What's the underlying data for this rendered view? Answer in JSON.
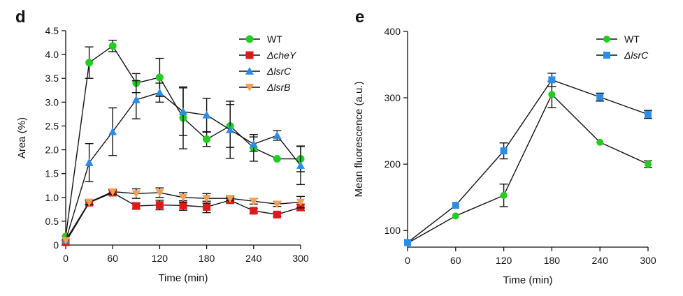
{
  "chart_data": [
    {
      "panel": "d",
      "type": "line",
      "xlabel": "Time (min)",
      "ylabel": "Area (%)",
      "xlim": [
        0,
        300
      ],
      "ylim": [
        0,
        4.5
      ],
      "xticks": [
        0,
        60,
        120,
        180,
        240,
        300
      ],
      "yticks": [
        0,
        0.5,
        1.0,
        1.5,
        2.0,
        2.5,
        3.0,
        3.5,
        4.0,
        4.5
      ],
      "ytick_labels": [
        "0",
        "0.5",
        "1.0",
        "1.5",
        "2.0",
        "2.5",
        "3.0",
        "3.5",
        "4.0",
        "4.5"
      ],
      "legend_position": "top-right",
      "grid": false,
      "x": [
        0,
        30,
        60,
        90,
        120,
        150,
        180,
        210,
        240,
        270,
        300
      ],
      "series": [
        {
          "name": "WT",
          "italic": false,
          "marker": "circle",
          "color": "#22cc22",
          "values": [
            0.18,
            3.83,
            4.18,
            3.4,
            3.52,
            2.67,
            2.22,
            2.5,
            2.04,
            1.81,
            1.81
          ],
          "err": [
            0,
            0.33,
            0.12,
            0.2,
            0.4,
            0.65,
            0.15,
            0.45,
            0.28,
            0,
            0.27
          ]
        },
        {
          "name": "ΔcheY",
          "italic": true,
          "marker": "square",
          "color": "#e01818",
          "values": [
            0.06,
            0.89,
            1.1,
            0.82,
            0.84,
            0.83,
            0.8,
            0.94,
            0.72,
            0.64,
            0.79
          ],
          "err": [
            0,
            0.05,
            0.05,
            0.06,
            0.1,
            0.1,
            0.12,
            0.06,
            0.05,
            0.04,
            0.07
          ]
        },
        {
          "name": "ΔlsrC",
          "italic": true,
          "marker": "triangle-up",
          "color": "#2b8de6",
          "values": [
            0.1,
            1.73,
            2.38,
            3.05,
            3.2,
            2.8,
            2.73,
            2.42,
            2.12,
            2.3,
            1.67
          ],
          "err": [
            0,
            0.4,
            0.5,
            0.4,
            0.2,
            0.5,
            0.35,
            0.6,
            0.15,
            0.1,
            0.4
          ]
        },
        {
          "name": "ΔlsrB",
          "italic": true,
          "marker": "triangle-down",
          "color": "#f5a050",
          "values": [
            0.1,
            0.9,
            1.12,
            1.08,
            1.1,
            1.0,
            0.98,
            0.98,
            0.92,
            0.86,
            0.9
          ],
          "err": [
            0,
            0.05,
            0.05,
            0.1,
            0.1,
            0.1,
            0.1,
            0.05,
            0.06,
            0.05,
            0.12
          ]
        }
      ]
    },
    {
      "panel": "e",
      "type": "line",
      "xlabel": "Time (min)",
      "ylabel": "Mean fluorescence (a.u.)",
      "xlim": [
        0,
        300
      ],
      "ylim": [
        75,
        400
      ],
      "xticks": [
        0,
        60,
        120,
        180,
        240,
        300
      ],
      "yticks": [
        100,
        200,
        300,
        400
      ],
      "ytick_labels": [
        "100",
        "200",
        "300",
        "400"
      ],
      "legend_position": "top-right",
      "grid": false,
      "x": [
        0,
        60,
        120,
        180,
        240,
        300
      ],
      "series": [
        {
          "name": "WT",
          "italic": false,
          "marker": "circle",
          "color": "#22cc22",
          "values": [
            81,
            122,
            153,
            305,
            233,
            200
          ],
          "err": [
            0,
            0,
            17,
            20,
            0,
            5
          ]
        },
        {
          "name": "ΔlsrC",
          "italic": true,
          "marker": "square",
          "color": "#2b8de6",
          "values": [
            82,
            138,
            220,
            327,
            301,
            275
          ],
          "err": [
            0,
            0,
            12,
            10,
            6,
            6
          ]
        }
      ]
    }
  ]
}
